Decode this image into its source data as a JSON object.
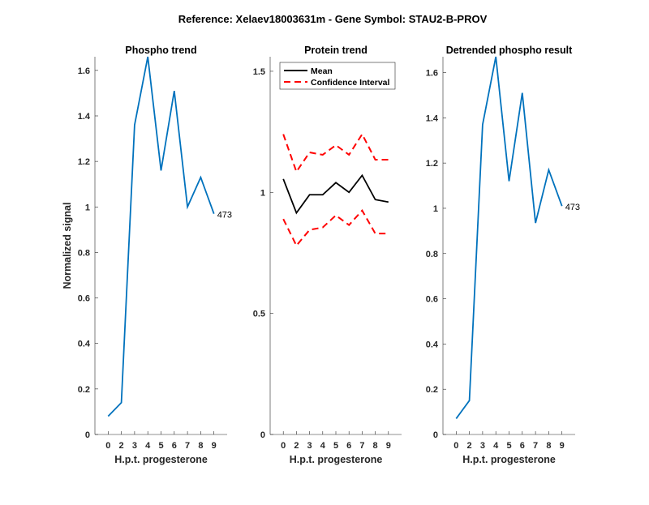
{
  "figure_title": "Reference:  Xelaev18003631m - Gene Symbol:  STAU2-B-PROV",
  "chart_data": [
    {
      "type": "line",
      "title": "Phospho trend",
      "xlabel": "H.p.t. progesterone",
      "ylabel": "Normalized signal",
      "categories": [
        "0",
        "2",
        "3",
        "4",
        "5",
        "6",
        "7",
        "8",
        "9"
      ],
      "ylim": [
        0,
        1.66
      ],
      "yticks": [
        "0",
        "0.2",
        "0.4",
        "0.6",
        "0.8",
        "1",
        "1.2",
        "1.4",
        "1.6"
      ],
      "ytick_values": [
        0,
        0.2,
        0.4,
        0.6,
        0.8,
        1,
        1.2,
        1.4,
        1.6
      ],
      "series": [
        {
          "values": [
            0.08,
            0.14,
            1.36,
            1.66,
            1.16,
            1.51,
            1.0,
            1.13,
            0.97
          ],
          "color": "#0072BD",
          "style": "solid"
        }
      ],
      "end_label": "473",
      "grid": false
    },
    {
      "type": "line",
      "title": "Protein trend",
      "xlabel": "H.p.t. progesterone",
      "ylabel": "",
      "categories": [
        "0",
        "2",
        "3",
        "4",
        "5",
        "6",
        "7",
        "8",
        "9"
      ],
      "ylim": [
        0,
        1.56
      ],
      "yticks": [
        "0",
        "0.5",
        "1",
        "1.5"
      ],
      "ytick_values": [
        0,
        0.5,
        1,
        1.5
      ],
      "series": [
        {
          "name": "Mean",
          "values": [
            1.055,
            0.915,
            0.99,
            0.99,
            1.04,
            1.0,
            1.07,
            0.97,
            0.96
          ],
          "color": "#000000",
          "style": "solid"
        },
        {
          "name": "Confidence Interval",
          "values": [
            1.24,
            1.085,
            1.165,
            1.155,
            1.195,
            1.155,
            1.24,
            1.135,
            1.135
          ],
          "color": "#FF0000",
          "style": "dashed"
        },
        {
          "values": [
            0.89,
            0.78,
            0.845,
            0.855,
            0.905,
            0.865,
            0.925,
            0.83,
            0.83
          ],
          "color": "#FF0000",
          "style": "dashed"
        }
      ],
      "legend": {
        "placement": "top-left",
        "entries": [
          "Mean",
          "Confidence Interval"
        ]
      },
      "grid": false
    },
    {
      "type": "line",
      "title": "Detrended phospho result",
      "xlabel": "H.p.t. progesterone",
      "ylabel": "",
      "categories": [
        "0",
        "2",
        "3",
        "4",
        "5",
        "6",
        "7",
        "8",
        "9"
      ],
      "ylim": [
        0,
        1.67
      ],
      "yticks": [
        "0",
        "0.2",
        "0.4",
        "0.6",
        "0.8",
        "1",
        "1.2",
        "1.4",
        "1.6"
      ],
      "ytick_values": [
        0,
        0.2,
        0.4,
        0.6,
        0.8,
        1,
        1.2,
        1.4,
        1.6
      ],
      "series": [
        {
          "values": [
            0.07,
            0.15,
            1.37,
            1.67,
            1.12,
            1.51,
            0.935,
            1.17,
            1.01
          ],
          "color": "#0072BD",
          "style": "solid"
        }
      ],
      "end_label": "473",
      "grid": false
    }
  ]
}
